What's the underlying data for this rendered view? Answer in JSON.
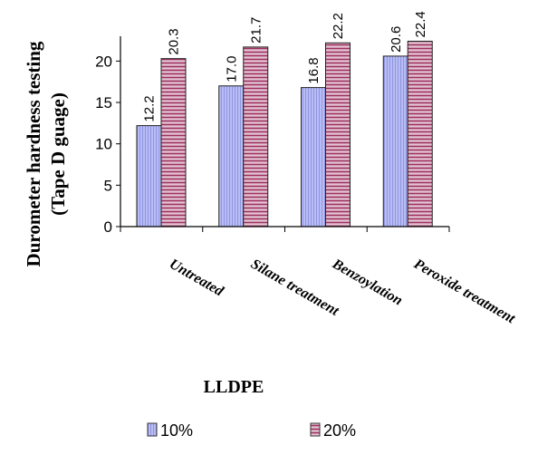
{
  "chart_data": {
    "type": "bar",
    "title": "",
    "xlabel": "LLDPE",
    "ylabel_line1": "Durometer hardness testing",
    "ylabel_line2": "(Tape D guage)",
    "categories": [
      "Untreated",
      "Silane treatment",
      "Benzoylation",
      "Peroxide treatment"
    ],
    "series": [
      {
        "name": "10%",
        "values": [
          12.2,
          17.0,
          16.8,
          20.6
        ],
        "labels": [
          "12.2",
          "17.0",
          "16.8",
          "20.6"
        ],
        "color": "#b3b8f2",
        "stroke": "#5a5fb0"
      },
      {
        "name": "20%",
        "values": [
          20.3,
          21.7,
          22.2,
          22.4
        ],
        "labels": [
          "20.3",
          "21.7",
          "22.2",
          "22.4"
        ],
        "color": "#d9a9c0",
        "stroke": "#8a2a55"
      }
    ],
    "ylim": [
      0,
      23
    ],
    "yticks": [
      0,
      5,
      10,
      15,
      20
    ],
    "ytick_labels": [
      "0",
      "5",
      "10",
      "15",
      "20"
    ],
    "grid": false,
    "legend_position": "bottom"
  }
}
